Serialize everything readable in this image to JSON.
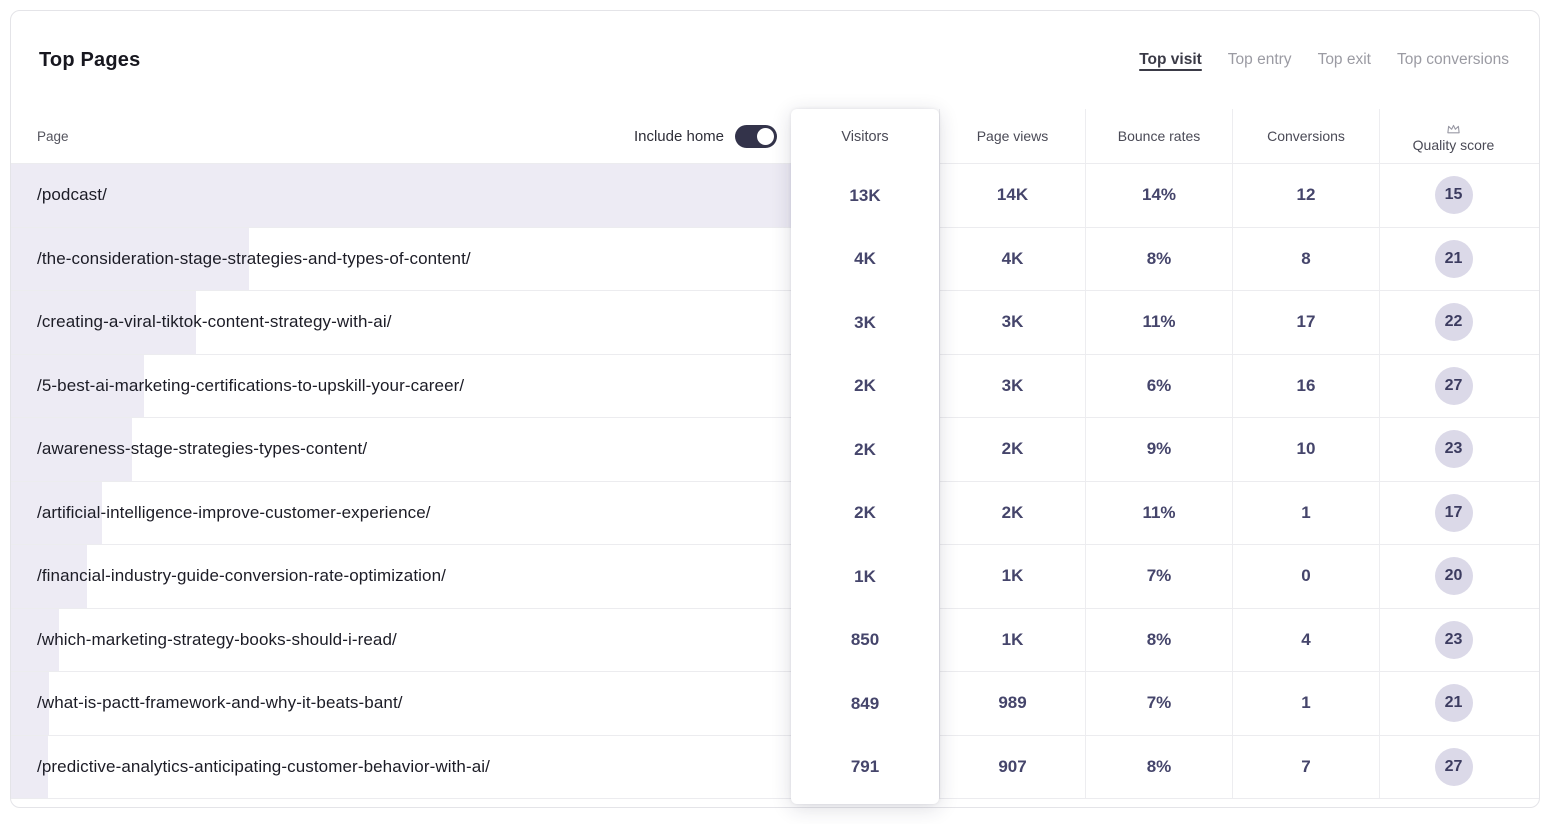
{
  "header": {
    "title": "Top Pages",
    "tabs": [
      {
        "label": "Top visit",
        "active": true
      },
      {
        "label": "Top entry",
        "active": false
      },
      {
        "label": "Top exit",
        "active": false
      },
      {
        "label": "Top conversions",
        "active": false
      }
    ]
  },
  "table": {
    "columns": {
      "page": "Page",
      "visitors": "Visitors",
      "page_views": "Page views",
      "bounce_rates": "Bounce rates",
      "conversions": "Conversions",
      "quality_score": "Quality score"
    },
    "include_home": {
      "label": "Include home",
      "enabled": true
    },
    "colors": {
      "bar": "#edebf4",
      "value_text": "#45456b",
      "badge_bg": "#dbd9e8",
      "toggle_on": "#33334a"
    },
    "rows": [
      {
        "page": "/podcast/",
        "visitors": "13K",
        "page_views": "14K",
        "bounce_rate": "14%",
        "conversions": "12",
        "quality_score": "15",
        "bar_pct": 100
      },
      {
        "page": "/the-consideration-stage-strategies-and-types-of-content/",
        "visitors": "4K",
        "page_views": "4K",
        "bounce_rate": "8%",
        "conversions": "8",
        "quality_score": "21",
        "bar_pct": 30.5
      },
      {
        "page": "/creating-a-viral-tiktok-content-strategy-with-ai/",
        "visitors": "3K",
        "page_views": "3K",
        "bounce_rate": "11%",
        "conversions": "17",
        "quality_score": "22",
        "bar_pct": 23.7
      },
      {
        "page": "/5-best-ai-marketing-certifications-to-upskill-your-career/",
        "visitors": "2K",
        "page_views": "3K",
        "bounce_rate": "6%",
        "conversions": "16",
        "quality_score": "27",
        "bar_pct": 17
      },
      {
        "page": "/awareness-stage-strategies-types-content/",
        "visitors": "2K",
        "page_views": "2K",
        "bounce_rate": "9%",
        "conversions": "10",
        "quality_score": "23",
        "bar_pct": 15.5
      },
      {
        "page": "/artificial-intelligence-improve-customer-experience/",
        "visitors": "2K",
        "page_views": "2K",
        "bounce_rate": "11%",
        "conversions": "1",
        "quality_score": "17",
        "bar_pct": 11.7
      },
      {
        "page": "/financial-industry-guide-conversion-rate-optimization/",
        "visitors": "1K",
        "page_views": "1K",
        "bounce_rate": "7%",
        "conversions": "0",
        "quality_score": "20",
        "bar_pct": 9.7
      },
      {
        "page": "/which-marketing-strategy-books-should-i-read/",
        "visitors": "850",
        "page_views": "1K",
        "bounce_rate": "8%",
        "conversions": "4",
        "quality_score": "23",
        "bar_pct": 6.2
      },
      {
        "page": "/what-is-pactt-framework-and-why-it-beats-bant/",
        "visitors": "849",
        "page_views": "989",
        "bounce_rate": "7%",
        "conversions": "1",
        "quality_score": "21",
        "bar_pct": 4.9
      },
      {
        "page": "/predictive-analytics-anticipating-customer-behavior-with-ai/",
        "visitors": "791",
        "page_views": "907",
        "bounce_rate": "8%",
        "conversions": "7",
        "quality_score": "27",
        "bar_pct": 4.7
      }
    ]
  }
}
